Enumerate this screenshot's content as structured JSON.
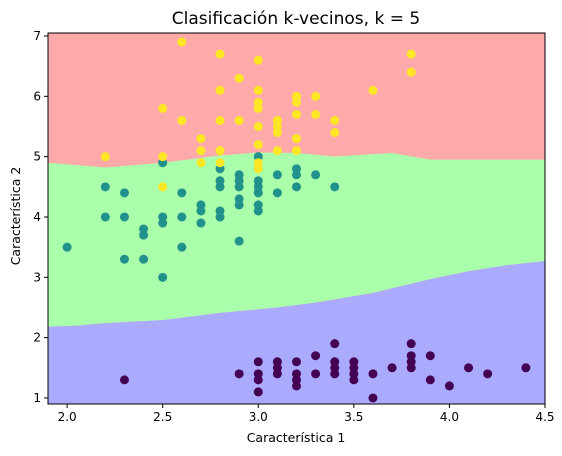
{
  "chart_data": {
    "type": "scatter",
    "title": "Clasificación k-vecinos, k = 5",
    "xlabel": "Característica 1",
    "ylabel": "Característica 2",
    "xlim": [
      1.9,
      4.5
    ],
    "ylim": [
      0.9,
      7.05
    ],
    "xticks": [
      "2.0",
      "2.5",
      "3.0",
      "3.5",
      "4.0",
      "4.5"
    ],
    "yticks": [
      "1",
      "2",
      "3",
      "4",
      "5",
      "6",
      "7"
    ],
    "grid": false,
    "legend": "none",
    "regions": {
      "top": {
        "color": "#ffaaaa"
      },
      "middle": {
        "color": "#aaffaa"
      },
      "bottom": {
        "color": "#aaaaff"
      },
      "bottom_boundary": [
        [
          1.9,
          2.18
        ],
        [
          2.05,
          2.2
        ],
        [
          2.2,
          2.24
        ],
        [
          2.5,
          2.29
        ],
        [
          2.8,
          2.41
        ],
        [
          3.1,
          2.5
        ],
        [
          3.3,
          2.58
        ],
        [
          3.6,
          2.74
        ],
        [
          3.9,
          2.97
        ],
        [
          4.1,
          3.1
        ],
        [
          4.3,
          3.2
        ],
        [
          4.5,
          3.27
        ]
      ],
      "top_boundary": [
        [
          1.9,
          4.9
        ],
        [
          2.2,
          4.82
        ],
        [
          2.5,
          4.9
        ],
        [
          2.8,
          5.02
        ],
        [
          3.0,
          5.07
        ],
        [
          3.2,
          5.06
        ],
        [
          3.4,
          5.0
        ],
        [
          3.7,
          5.06
        ],
        [
          3.9,
          4.95
        ],
        [
          4.5,
          4.95
        ]
      ]
    },
    "series": [
      {
        "color": "#440154",
        "points": [
          [
            2.3,
            1.3
          ],
          [
            2.9,
            1.4
          ],
          [
            3.0,
            1.1
          ],
          [
            3.0,
            1.3
          ],
          [
            3.0,
            1.4
          ],
          [
            3.0,
            1.6
          ],
          [
            3.1,
            1.4
          ],
          [
            3.1,
            1.5
          ],
          [
            3.1,
            1.6
          ],
          [
            3.2,
            1.2
          ],
          [
            3.2,
            1.3
          ],
          [
            3.2,
            1.4
          ],
          [
            3.2,
            1.6
          ],
          [
            3.3,
            1.4
          ],
          [
            3.3,
            1.7
          ],
          [
            3.4,
            1.4
          ],
          [
            3.4,
            1.5
          ],
          [
            3.4,
            1.6
          ],
          [
            3.4,
            1.9
          ],
          [
            3.5,
            1.3
          ],
          [
            3.5,
            1.4
          ],
          [
            3.5,
            1.5
          ],
          [
            3.5,
            1.6
          ],
          [
            3.6,
            1.0
          ],
          [
            3.6,
            1.4
          ],
          [
            3.7,
            1.5
          ],
          [
            3.8,
            1.5
          ],
          [
            3.8,
            1.6
          ],
          [
            3.8,
            1.7
          ],
          [
            3.8,
            1.9
          ],
          [
            3.9,
            1.3
          ],
          [
            3.9,
            1.7
          ],
          [
            4.0,
            1.2
          ],
          [
            4.1,
            1.5
          ],
          [
            4.2,
            1.4
          ],
          [
            4.4,
            1.5
          ]
        ]
      },
      {
        "color": "#21918c",
        "points": [
          [
            2.0,
            3.5
          ],
          [
            2.2,
            4.0
          ],
          [
            2.2,
            4.5
          ],
          [
            2.3,
            3.3
          ],
          [
            2.3,
            4.0
          ],
          [
            2.3,
            4.4
          ],
          [
            2.4,
            3.3
          ],
          [
            2.4,
            3.7
          ],
          [
            2.4,
            3.8
          ],
          [
            2.5,
            3.0
          ],
          [
            2.5,
            3.9
          ],
          [
            2.5,
            4.0
          ],
          [
            2.5,
            4.9
          ],
          [
            2.6,
            3.5
          ],
          [
            2.6,
            4.0
          ],
          [
            2.6,
            4.4
          ],
          [
            2.7,
            3.9
          ],
          [
            2.7,
            4.1
          ],
          [
            2.7,
            4.2
          ],
          [
            2.8,
            4.0
          ],
          [
            2.8,
            4.1
          ],
          [
            2.8,
            4.5
          ],
          [
            2.8,
            4.6
          ],
          [
            2.8,
            4.8
          ],
          [
            2.9,
            3.6
          ],
          [
            2.9,
            4.2
          ],
          [
            2.9,
            4.3
          ],
          [
            2.9,
            4.5
          ],
          [
            2.9,
            4.6
          ],
          [
            2.9,
            4.7
          ],
          [
            3.0,
            4.1
          ],
          [
            3.0,
            4.2
          ],
          [
            3.0,
            4.4
          ],
          [
            3.0,
            4.5
          ],
          [
            3.0,
            4.6
          ],
          [
            3.0,
            4.8
          ],
          [
            3.0,
            5.0
          ],
          [
            3.1,
            4.4
          ],
          [
            3.1,
            4.7
          ],
          [
            3.2,
            4.5
          ],
          [
            3.2,
            4.7
          ],
          [
            3.2,
            4.8
          ],
          [
            3.3,
            4.7
          ],
          [
            3.4,
            4.5
          ]
        ]
      },
      {
        "color": "#fde725",
        "points": [
          [
            2.2,
            5.0
          ],
          [
            2.5,
            4.5
          ],
          [
            2.5,
            5.0
          ],
          [
            2.5,
            5.8
          ],
          [
            2.6,
            5.6
          ],
          [
            2.6,
            6.9
          ],
          [
            2.7,
            4.9
          ],
          [
            2.7,
            5.1
          ],
          [
            2.7,
            5.3
          ],
          [
            2.8,
            4.9
          ],
          [
            2.8,
            5.1
          ],
          [
            2.8,
            5.6
          ],
          [
            2.8,
            6.1
          ],
          [
            2.8,
            6.7
          ],
          [
            2.9,
            5.6
          ],
          [
            2.9,
            6.3
          ],
          [
            3.0,
            4.8
          ],
          [
            3.0,
            4.9
          ],
          [
            3.0,
            5.2
          ],
          [
            3.0,
            5.5
          ],
          [
            3.0,
            5.8
          ],
          [
            3.0,
            5.9
          ],
          [
            3.0,
            6.1
          ],
          [
            3.0,
            6.6
          ],
          [
            3.1,
            5.1
          ],
          [
            3.1,
            5.4
          ],
          [
            3.1,
            5.5
          ],
          [
            3.1,
            5.6
          ],
          [
            3.2,
            5.1
          ],
          [
            3.2,
            5.3
          ],
          [
            3.2,
            5.7
          ],
          [
            3.2,
            5.9
          ],
          [
            3.2,
            6.0
          ],
          [
            3.3,
            5.7
          ],
          [
            3.3,
            6.0
          ],
          [
            3.4,
            5.4
          ],
          [
            3.4,
            5.6
          ],
          [
            3.6,
            6.1
          ],
          [
            3.8,
            6.4
          ],
          [
            3.8,
            6.7
          ]
        ]
      }
    ]
  }
}
